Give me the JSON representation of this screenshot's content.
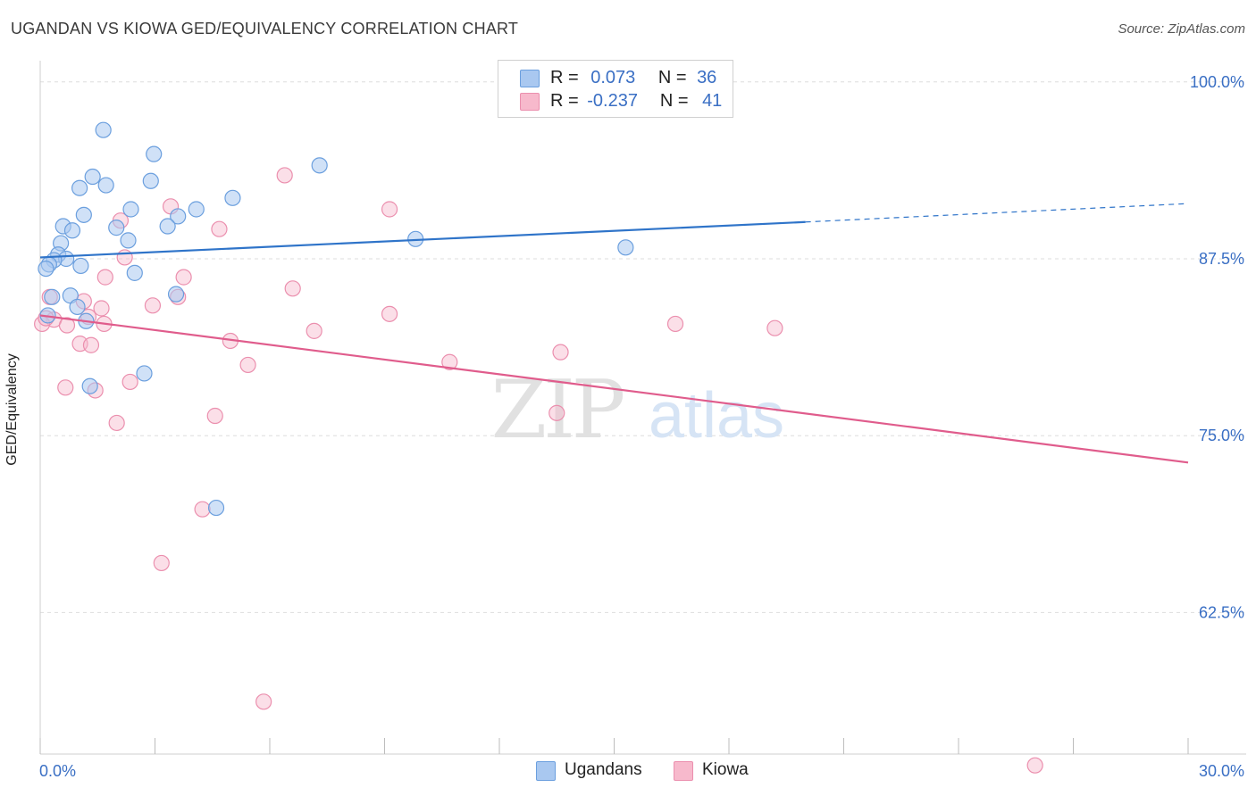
{
  "title": "UGANDAN VS KIOWA GED/EQUIVALENCY CORRELATION CHART",
  "source": "Source: ZipAtlas.com",
  "watermark": {
    "zip": "ZIP",
    "atlas": "atlas"
  },
  "legend": {
    "rows": [
      {
        "r_label": "R =",
        "r_value": "0.073",
        "n_label": "N =",
        "n_value": "36"
      },
      {
        "r_label": "R =",
        "r_value": "-0.237",
        "n_label": "N =",
        "n_value": "41"
      }
    ]
  },
  "bottom_legend": {
    "ugandans": "Ugandans",
    "kiowa": "Kiowa"
  },
  "colors": {
    "ugandans_fill": "#a9c8f0",
    "ugandans_stroke": "#6b9fde",
    "ugandans_line": "#2f74c9",
    "kiowa_fill": "#f7b9cc",
    "kiowa_stroke": "#eb8fae",
    "kiowa_line": "#e05c8c",
    "tick_label": "#3a6fc4",
    "grid": "#dddddd"
  },
  "chart_data": {
    "type": "scatter",
    "title": "UGANDAN VS KIOWA GED/EQUIVALENCY CORRELATION CHART",
    "xlabel": "",
    "ylabel": "GED/Equivalency",
    "xlim": [
      0,
      30
    ],
    "ylim": [
      52.5,
      101.5
    ],
    "x_tick_labels": [
      {
        "value": 0,
        "label": "0.0%"
      },
      {
        "value": 30,
        "label": "30.0%"
      }
    ],
    "y_tick_labels": [
      {
        "value": 100,
        "label": "100.0%"
      },
      {
        "value": 87.5,
        "label": "87.5%"
      },
      {
        "value": 75,
        "label": "75.0%"
      },
      {
        "value": 62.5,
        "label": "62.5%"
      }
    ],
    "grid": "horizontal dashed",
    "series": [
      {
        "name": "Ugandans",
        "r": 0.073,
        "n": 36,
        "trend": {
          "x0": 0,
          "y0": 87.6,
          "x1": 20,
          "y1": 90.1,
          "dashed_to": 30,
          "y_dashed_end": 91.4
        },
        "points": [
          [
            1.65,
            96.6
          ],
          [
            2.97,
            94.9
          ],
          [
            1.37,
            93.3
          ],
          [
            2.89,
            93.0
          ],
          [
            1.72,
            92.7
          ],
          [
            1.03,
            92.5
          ],
          [
            7.3,
            94.1
          ],
          [
            5.03,
            91.8
          ],
          [
            2.37,
            91.0
          ],
          [
            4.08,
            91.0
          ],
          [
            1.14,
            90.6
          ],
          [
            3.6,
            90.5
          ],
          [
            0.6,
            89.8
          ],
          [
            1.99,
            89.7
          ],
          [
            3.33,
            89.8
          ],
          [
            0.84,
            89.5
          ],
          [
            0.54,
            88.6
          ],
          [
            2.3,
            88.8
          ],
          [
            9.81,
            88.9
          ],
          [
            15.3,
            88.3
          ],
          [
            0.47,
            87.8
          ],
          [
            0.68,
            87.5
          ],
          [
            0.36,
            87.4
          ],
          [
            0.23,
            87.1
          ],
          [
            1.06,
            87.0
          ],
          [
            0.15,
            86.8
          ],
          [
            2.47,
            86.5
          ],
          [
            3.55,
            85.0
          ],
          [
            0.79,
            84.9
          ],
          [
            0.31,
            84.8
          ],
          [
            0.97,
            84.1
          ],
          [
            1.2,
            83.1
          ],
          [
            0.2,
            83.5
          ],
          [
            2.72,
            79.4
          ],
          [
            1.3,
            78.5
          ],
          [
            4.6,
            69.9
          ]
        ]
      },
      {
        "name": "Kiowa",
        "r": -0.237,
        "n": 41,
        "trend": {
          "x0": 0,
          "y0": 83.5,
          "x1": 30,
          "y1": 73.1
        },
        "points": [
          [
            15.9,
            100.2
          ],
          [
            6.39,
            93.4
          ],
          [
            9.13,
            91.0
          ],
          [
            3.41,
            91.2
          ],
          [
            2.1,
            90.2
          ],
          [
            4.68,
            89.6
          ],
          [
            2.21,
            87.6
          ],
          [
            1.7,
            86.2
          ],
          [
            3.75,
            86.2
          ],
          [
            6.6,
            85.4
          ],
          [
            3.6,
            84.8
          ],
          [
            0.25,
            84.8
          ],
          [
            1.14,
            84.5
          ],
          [
            2.94,
            84.2
          ],
          [
            1.6,
            84.0
          ],
          [
            9.13,
            83.6
          ],
          [
            1.26,
            83.4
          ],
          [
            0.36,
            83.2
          ],
          [
            1.67,
            82.9
          ],
          [
            0.7,
            82.8
          ],
          [
            0.05,
            82.9
          ],
          [
            16.6,
            82.9
          ],
          [
            19.2,
            82.6
          ],
          [
            7.16,
            82.4
          ],
          [
            4.97,
            81.7
          ],
          [
            1.04,
            81.5
          ],
          [
            1.33,
            81.4
          ],
          [
            13.6,
            80.9
          ],
          [
            10.7,
            80.2
          ],
          [
            5.43,
            80.0
          ],
          [
            2.35,
            78.8
          ],
          [
            0.66,
            78.4
          ],
          [
            1.44,
            78.2
          ],
          [
            4.57,
            76.4
          ],
          [
            13.5,
            76.6
          ],
          [
            2.0,
            75.9
          ],
          [
            4.24,
            69.8
          ],
          [
            3.17,
            66.0
          ],
          [
            5.84,
            56.2
          ],
          [
            26.0,
            51.7
          ],
          [
            0.15,
            83.3
          ]
        ]
      }
    ]
  }
}
